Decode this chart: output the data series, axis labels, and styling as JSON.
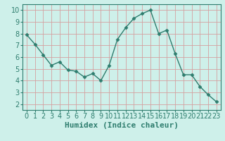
{
  "x": [
    0,
    1,
    2,
    3,
    4,
    5,
    6,
    7,
    8,
    9,
    10,
    11,
    12,
    13,
    14,
    15,
    16,
    17,
    18,
    19,
    20,
    21,
    22,
    23
  ],
  "y": [
    7.9,
    7.1,
    6.2,
    5.3,
    5.6,
    4.9,
    4.8,
    4.3,
    4.6,
    4.0,
    5.3,
    7.5,
    8.5,
    9.3,
    9.7,
    10.0,
    8.0,
    8.3,
    6.3,
    4.5,
    4.5,
    3.5,
    2.8,
    2.2
  ],
  "line_color": "#2e7d6e",
  "marker": "D",
  "marker_size": 2.5,
  "line_width": 1.0,
  "bg_color": "#cef0ea",
  "grid_color": "#d4a0a0",
  "xlabel": "Humidex (Indice chaleur)",
  "xlabel_fontsize": 8,
  "tick_fontsize": 7,
  "tick_color": "#2e7d6e",
  "spine_color": "#2e7d6e",
  "xlim": [
    -0.5,
    23.5
  ],
  "ylim": [
    1.5,
    10.5
  ],
  "yticks": [
    2,
    3,
    4,
    5,
    6,
    7,
    8,
    9,
    10
  ],
  "xticks": [
    0,
    1,
    2,
    3,
    4,
    5,
    6,
    7,
    8,
    9,
    10,
    11,
    12,
    13,
    14,
    15,
    16,
    17,
    18,
    19,
    20,
    21,
    22,
    23
  ]
}
